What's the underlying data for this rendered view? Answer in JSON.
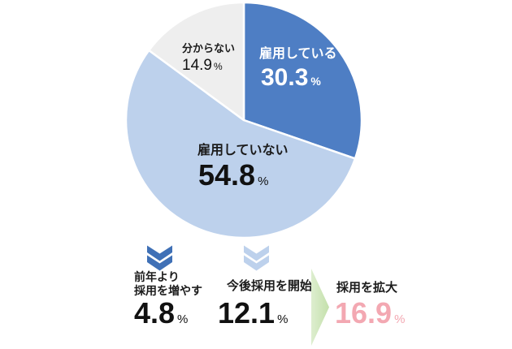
{
  "chart_data": {
    "type": "pie",
    "title": "",
    "unit": "%",
    "rotation": "clockwise-from-top",
    "legend": "none",
    "segments": [
      {
        "label": "雇用している",
        "value": 30.3,
        "color": "#4e7ec4",
        "text_color": "#ffffff"
      },
      {
        "label": "雇用していない",
        "value": 54.8,
        "color": "#bdd1ec",
        "text_color": "#111111"
      },
      {
        "label": "分からない",
        "value": 14.9,
        "color": "#eeeeee",
        "text_color": "#111111"
      }
    ]
  },
  "breakdown": {
    "items": [
      {
        "label_lines": [
          "前年より",
          "採用を増やす"
        ],
        "value": 4.8
      },
      {
        "label_lines": [
          "今後採用を開始"
        ],
        "value": 12.1
      }
    ],
    "result": {
      "label": "採用を拡大",
      "value": 16.9
    }
  },
  "colors": {
    "slice_hiring": "#4e7ec4",
    "slice_not_hiring": "#bdd1ec",
    "slice_unknown": "#eeeeee",
    "pie_separator": "#ffffff",
    "chevron_dark": "#3f70b6",
    "chevron_light": "#bdd1ec",
    "arrow_green_from": "#ddeecf",
    "arrow_green_to": "#c4e0ab",
    "result_value_pink": "#f3a8b2"
  }
}
